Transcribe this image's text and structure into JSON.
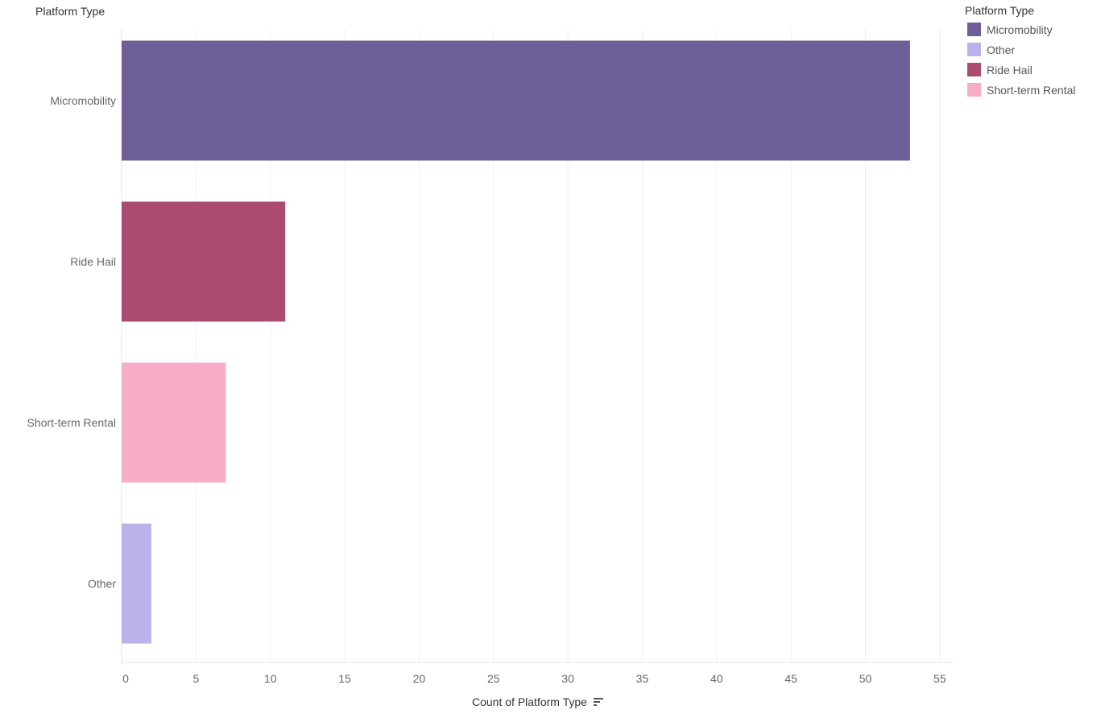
{
  "row_header": "Platform Type",
  "legend": {
    "title": "Platform Type",
    "items": [
      {
        "label": "Micromobility",
        "color": "#6e5f99"
      },
      {
        "label": "Other",
        "color": "#bab3ea"
      },
      {
        "label": "Ride Hail",
        "color": "#ac4b71"
      },
      {
        "label": "Short-term Rental",
        "color": "#f7adc8"
      }
    ]
  },
  "sort_icon": "sort-descending-icon",
  "chart_data": {
    "type": "bar",
    "orientation": "horizontal",
    "categories": [
      "Micromobility",
      "Ride Hail",
      "Short-term Rental",
      "Other"
    ],
    "values": [
      53,
      11,
      7,
      2
    ],
    "colors": [
      "#6e5f99",
      "#ac4b71",
      "#f7adc8",
      "#bab3ea"
    ],
    "xlabel": "Count of Platform Type",
    "ylabel": "Platform Type",
    "xlim": [
      0,
      56
    ],
    "xticks": [
      "0",
      "5",
      "10",
      "15",
      "20",
      "25",
      "30",
      "35",
      "40",
      "45",
      "50",
      "55"
    ],
    "grid": true,
    "legend_position": "top-right"
  }
}
